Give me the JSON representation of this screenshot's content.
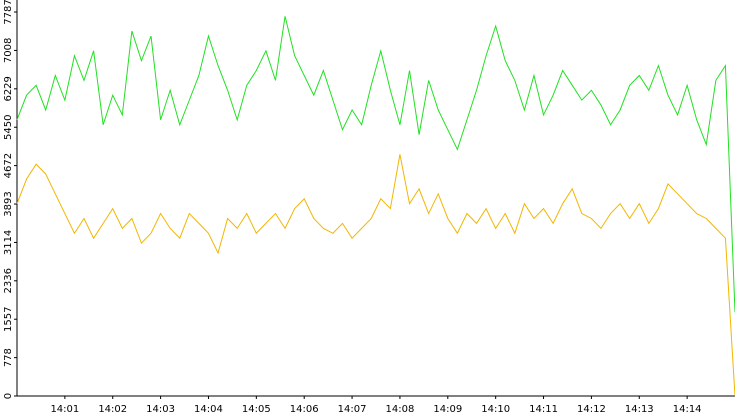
{
  "chart_data": {
    "type": "line",
    "x": [
      0,
      0.2,
      0.4,
      0.6,
      0.8,
      1,
      1.2,
      1.4,
      1.6,
      1.8,
      2,
      2.2,
      2.4,
      2.6,
      2.8,
      3,
      3.2,
      3.4,
      3.6,
      3.8,
      4,
      4.2,
      4.4,
      4.6,
      4.8,
      5,
      5.2,
      5.4,
      5.6,
      5.8,
      6,
      6.2,
      6.4,
      6.6,
      6.8,
      7,
      7.2,
      7.4,
      7.6,
      7.8,
      8,
      8.2,
      8.4,
      8.6,
      8.8,
      9,
      9.2,
      9.4,
      9.6,
      9.8,
      10,
      10.2,
      10.4,
      10.6,
      10.8,
      11,
      11.2,
      11.4,
      11.6,
      11.8,
      12,
      12.2,
      12.4,
      12.6,
      12.8,
      13,
      13.2,
      13.4,
      13.6,
      13.8,
      14,
      14.2,
      14.4,
      14.6,
      14.8,
      15
    ],
    "series": [
      {
        "color": "#22e022",
        "values": [
          5600,
          6100,
          6300,
          5800,
          6500,
          6000,
          6900,
          6400,
          7000,
          5500,
          6100,
          5700,
          7400,
          6800,
          7300,
          5600,
          6200,
          5500,
          6000,
          6500,
          7300,
          6700,
          6200,
          5600,
          6300,
          6600,
          7000,
          6400,
          7700,
          6900,
          6500,
          6100,
          6600,
          6000,
          5400,
          5800,
          5500,
          6300,
          7000,
          6200,
          5500,
          6600,
          5300,
          6400,
          5800,
          5400,
          5000,
          5600,
          6200,
          6900,
          7500,
          6800,
          6400,
          5800,
          6500,
          5700,
          6100,
          6600,
          6300,
          6000,
          6200,
          5900,
          5500,
          5800,
          6300,
          6500,
          6200,
          6700,
          6100,
          5700,
          6300,
          5600,
          5100,
          6400,
          6700,
          1700
        ]
      },
      {
        "color": "#f2b600",
        "values": [
          3900,
          4400,
          4700,
          4500,
          4100,
          3700,
          3300,
          3600,
          3200,
          3500,
          3800,
          3400,
          3600,
          3100,
          3300,
          3700,
          3400,
          3200,
          3700,
          3500,
          3300,
          2900,
          3600,
          3400,
          3700,
          3300,
          3500,
          3700,
          3400,
          3800,
          4000,
          3600,
          3400,
          3300,
          3500,
          3200,
          3400,
          3600,
          4000,
          3800,
          4900,
          3900,
          4200,
          3700,
          4100,
          3600,
          3300,
          3700,
          3500,
          3800,
          3400,
          3700,
          3300,
          3900,
          3600,
          3800,
          3500,
          3900,
          4200,
          3700,
          3600,
          3400,
          3700,
          3900,
          3600,
          3900,
          3500,
          3800,
          4300,
          4100,
          3900,
          3700,
          3600,
          3400,
          3200,
          0
        ]
      }
    ],
    "xlim": [
      0,
      15
    ],
    "xticks": [
      {
        "value": 1,
        "label": "14:01"
      },
      {
        "value": 2,
        "label": "14:02"
      },
      {
        "value": 3,
        "label": "14:03"
      },
      {
        "value": 4,
        "label": "14:04"
      },
      {
        "value": 5,
        "label": "14:05"
      },
      {
        "value": 6,
        "label": "14:06"
      },
      {
        "value": 7,
        "label": "14:07"
      },
      {
        "value": 8,
        "label": "14:08"
      },
      {
        "value": 9,
        "label": "14:09"
      },
      {
        "value": 10,
        "label": "14:10"
      },
      {
        "value": 11,
        "label": "14:11"
      },
      {
        "value": 12,
        "label": "14:12"
      },
      {
        "value": 13,
        "label": "14:13"
      },
      {
        "value": 14,
        "label": "14:14"
      }
    ],
    "ylim": [
      0,
      7787
    ],
    "yticks": [
      0,
      778,
      1557,
      2336,
      3114,
      3893,
      4672,
      5450,
      6229,
      7008,
      7787
    ]
  }
}
